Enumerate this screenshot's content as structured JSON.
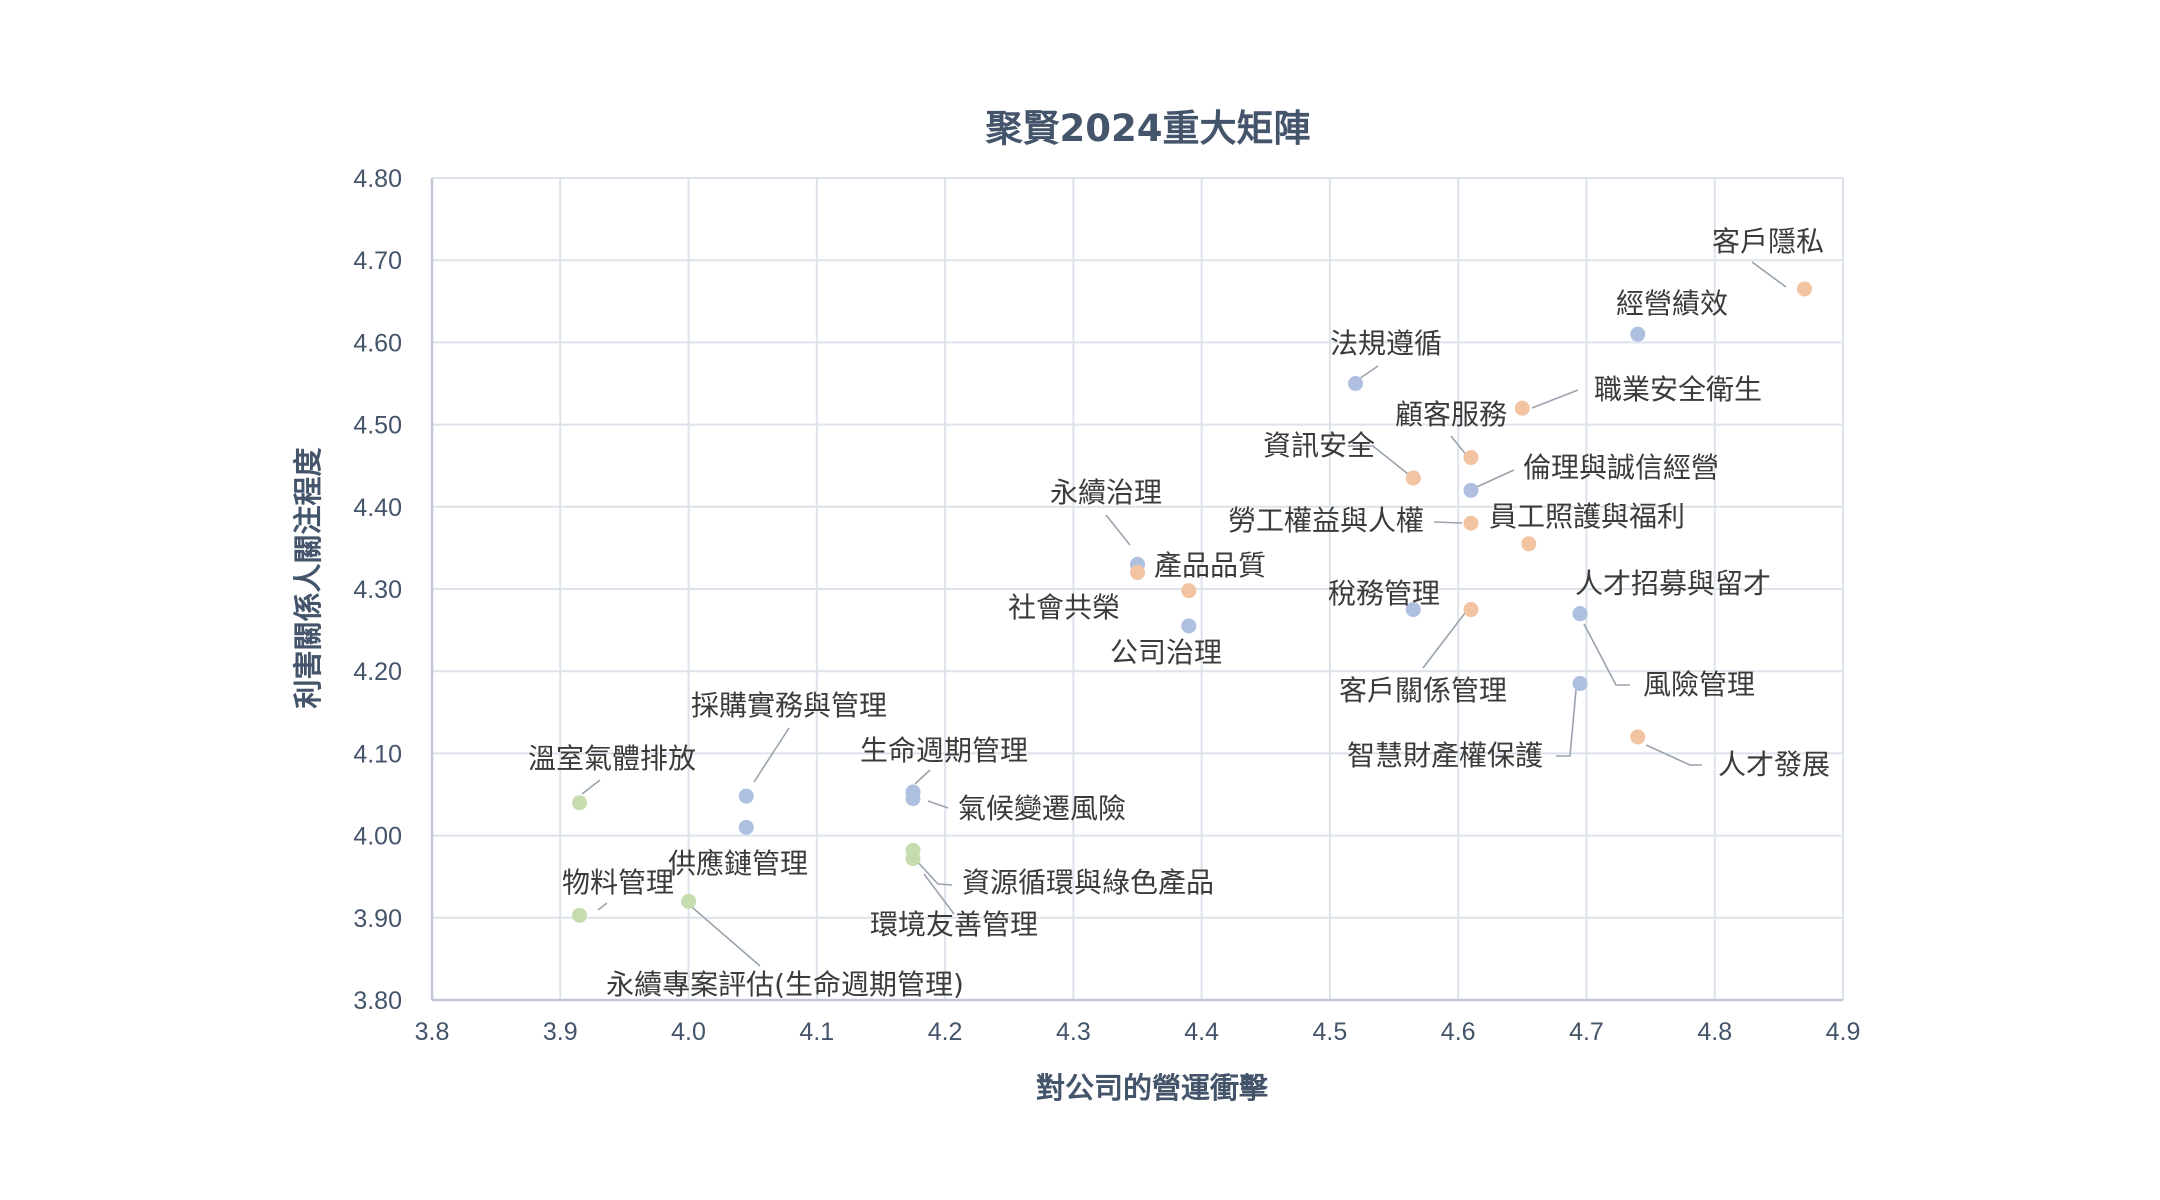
{
  "chart_data": {
    "type": "scatter",
    "title": "聚賢2024重大矩陣",
    "xlabel": "對公司的營運衝擊",
    "ylabel": "利害關係人關注程度",
    "xlim": [
      3.8,
      4.9
    ],
    "ylim": [
      3.8,
      4.8
    ],
    "x_ticks": [
      "3.8",
      "3.9",
      "4.0",
      "4.1",
      "4.2",
      "4.3",
      "4.4",
      "4.5",
      "4.6",
      "4.7",
      "4.8",
      "4.9"
    ],
    "y_ticks": [
      "3.80",
      "3.90",
      "4.00",
      "4.10",
      "4.20",
      "4.30",
      "4.40",
      "4.50",
      "4.60",
      "4.70",
      "4.80"
    ],
    "grid": true,
    "legend": "none",
    "colors": {
      "governance": "#aebfdf",
      "social": "#f2c4a2",
      "environment": "#c5dcae"
    },
    "points": [
      {
        "label": "客戶隱私",
        "x": 4.87,
        "y": 4.665,
        "group": "social"
      },
      {
        "label": "經營績效",
        "x": 4.74,
        "y": 4.61,
        "group": "governance"
      },
      {
        "label": "法規遵循",
        "x": 4.52,
        "y": 4.55,
        "group": "governance"
      },
      {
        "label": "職業安全衛生",
        "x": 4.65,
        "y": 4.52,
        "group": "social"
      },
      {
        "label": "顧客服務",
        "x": 4.61,
        "y": 4.46,
        "group": "social"
      },
      {
        "label": "資訊安全",
        "x": 4.565,
        "y": 4.435,
        "group": "social"
      },
      {
        "label": "倫理與誠信經營",
        "x": 4.61,
        "y": 4.42,
        "group": "governance"
      },
      {
        "label": "勞工權益與人權",
        "x": 4.61,
        "y": 4.38,
        "group": "social"
      },
      {
        "label": "員工照護與福利",
        "x": 4.655,
        "y": 4.355,
        "group": "social"
      },
      {
        "label": "永續治理",
        "x": 4.35,
        "y": 4.33,
        "group": "governance"
      },
      {
        "label": "社會共榮",
        "x": 4.35,
        "y": 4.32,
        "group": "social"
      },
      {
        "label": "產品品質",
        "x": 4.39,
        "y": 4.298,
        "group": "social"
      },
      {
        "label": "稅務管理",
        "x": 4.565,
        "y": 4.275,
        "group": "governance"
      },
      {
        "label": "客戶關係管理",
        "x": 4.61,
        "y": 4.275,
        "group": "social"
      },
      {
        "label": "人才招募與留才",
        "x": 4.695,
        "y": 4.27,
        "group": "governance"
      },
      {
        "label": "公司治理",
        "x": 4.39,
        "y": 4.255,
        "group": "governance"
      },
      {
        "label": "風險管理",
        "x": 4.695,
        "y": 4.27,
        "group": "governance"
      },
      {
        "label": "智慧財產權保護",
        "x": 4.695,
        "y": 4.185,
        "group": "governance"
      },
      {
        "label": "人才發展",
        "x": 4.74,
        "y": 4.12,
        "group": "social"
      },
      {
        "label": "溫室氣體排放",
        "x": 3.915,
        "y": 4.04,
        "group": "environment"
      },
      {
        "label": "採購實務與管理",
        "x": 4.045,
        "y": 4.048,
        "group": "governance"
      },
      {
        "label": "生命週期管理",
        "x": 4.175,
        "y": 4.053,
        "group": "governance"
      },
      {
        "label": "氣候變遷風險",
        "x": 4.175,
        "y": 4.045,
        "group": "governance"
      },
      {
        "label": "供應鏈管理",
        "x": 4.045,
        "y": 4.01,
        "group": "governance"
      },
      {
        "label": "物料管理",
        "x": 3.915,
        "y": 3.903,
        "group": "environment"
      },
      {
        "label": "資源循環與綠色產品",
        "x": 4.175,
        "y": 3.982,
        "group": "environment"
      },
      {
        "label": "環境友善管理",
        "x": 4.175,
        "y": 3.972,
        "group": "environment"
      },
      {
        "label": "永續專案評估(生命週期管理)",
        "x": 4.0,
        "y": 3.92,
        "group": "environment"
      }
    ]
  }
}
